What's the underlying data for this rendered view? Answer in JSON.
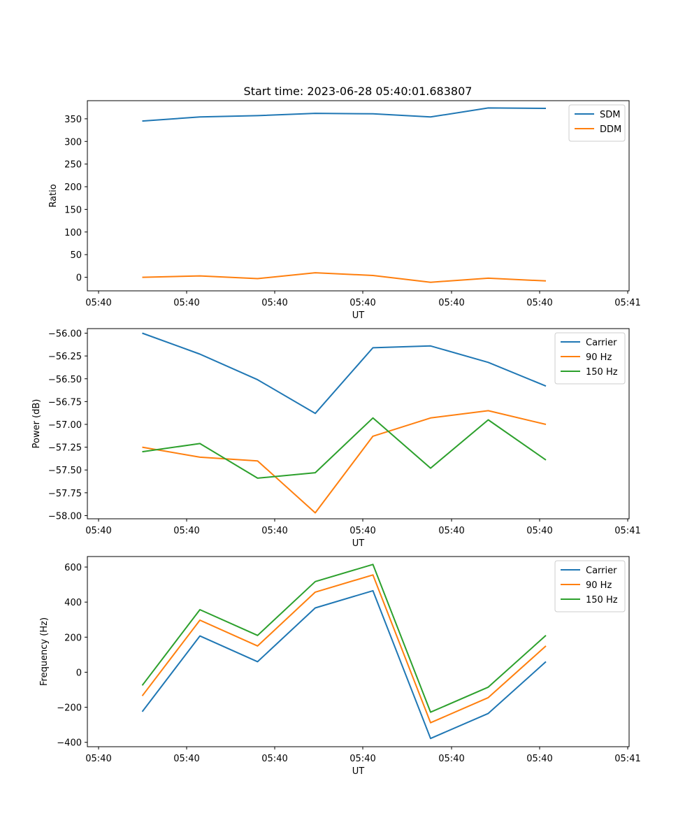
{
  "figure": {
    "title": "Start time: 2023-06-28 05:40:01.683807"
  },
  "chart_data": [
    {
      "type": "line",
      "xlabel": "UT",
      "ylabel": "Ratio",
      "x_tick_labels": [
        "05:40",
        "05:40",
        "05:40",
        "05:40",
        "05:40",
        "05:40",
        "05:40",
        "05:41"
      ],
      "ylim": [
        -30,
        390
      ],
      "yticks": [
        0,
        50,
        100,
        150,
        200,
        250,
        300,
        350
      ],
      "legend": "top-right",
      "series": [
        {
          "name": "SDM",
          "color": "#1f77b4",
          "values": [
            345,
            354,
            357,
            362,
            361,
            354,
            374,
            373
          ]
        },
        {
          "name": "DDM",
          "color": "#ff7f0e",
          "values": [
            0,
            3,
            -3,
            10,
            4,
            -11,
            -2,
            -8
          ]
        }
      ]
    },
    {
      "type": "line",
      "xlabel": "UT",
      "ylabel": "Power (dB)",
      "x_tick_labels": [
        "05:40",
        "05:40",
        "05:40",
        "05:40",
        "05:40",
        "05:40",
        "05:40",
        "05:41"
      ],
      "ylim": [
        -58.035,
        -55.95
      ],
      "yticks": [
        -58.0,
        -57.75,
        -57.5,
        -57.25,
        -57.0,
        -56.75,
        -56.5,
        -56.25,
        -56.0
      ],
      "ytick_decimals": 2,
      "legend": "top-right",
      "series": [
        {
          "name": "Carrier",
          "color": "#1f77b4",
          "values": [
            -56.0,
            -56.23,
            -56.51,
            -56.88,
            -56.16,
            -56.14,
            -56.32,
            -56.58
          ]
        },
        {
          "name": "90 Hz",
          "color": "#ff7f0e",
          "values": [
            -57.25,
            -57.36,
            -57.4,
            -57.97,
            -57.13,
            -56.93,
            -56.85,
            -57.0
          ]
        },
        {
          "name": "150 Hz",
          "color": "#2ca02c",
          "values": [
            -57.3,
            -57.21,
            -57.59,
            -57.53,
            -56.93,
            -57.48,
            -56.95,
            -57.39
          ]
        }
      ]
    },
    {
      "type": "line",
      "xlabel": "UT",
      "ylabel": "Frequency (Hz)",
      "x_tick_labels": [
        "05:40",
        "05:40",
        "05:40",
        "05:40",
        "05:40",
        "05:40",
        "05:40",
        "05:41"
      ],
      "ylim": [
        -425,
        660
      ],
      "yticks": [
        -400,
        -200,
        0,
        200,
        400,
        600
      ],
      "legend": "top-right",
      "series": [
        {
          "name": "Carrier",
          "color": "#1f77b4",
          "values": [
            -225,
            207,
            60,
            367,
            465,
            -378,
            -235,
            60
          ]
        },
        {
          "name": "90 Hz",
          "color": "#ff7f0e",
          "values": [
            -135,
            297,
            150,
            457,
            555,
            -288,
            -145,
            150
          ]
        },
        {
          "name": "150 Hz",
          "color": "#2ca02c",
          "values": [
            -75,
            357,
            210,
            517,
            615,
            -228,
            -85,
            210
          ]
        }
      ]
    }
  ]
}
